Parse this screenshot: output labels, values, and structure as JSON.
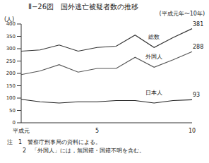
{
  "chart_data": {
    "type": "line",
    "title": "Ⅱ−26図　国外逃亡被疑者数の推移",
    "subtitle": "(平成元年〜10年)",
    "y_label": "(人)",
    "categories": [
      "平成元",
      null,
      null,
      null,
      "5",
      null,
      null,
      null,
      null,
      "10"
    ],
    "series": [
      {
        "name": "総数",
        "color": "#333333",
        "values": [
          290,
          295,
          315,
          290,
          305,
          310,
          355,
          305,
          345,
          381
        ]
      },
      {
        "name": "外国人",
        "color": "#555555",
        "values": [
          195,
          210,
          235,
          205,
          220,
          220,
          265,
          225,
          255,
          288
        ]
      },
      {
        "name": "日本人",
        "color": "#222222",
        "values": [
          95,
          85,
          80,
          85,
          85,
          90,
          90,
          80,
          90,
          93
        ]
      }
    ],
    "ylim": [
      0,
      400
    ],
    "yticks": [
      0,
      50,
      100,
      150,
      200,
      250,
      300,
      350,
      400
    ],
    "grid": false,
    "notes": [
      "注　1　警察庁刑事局の資料による。",
      "2　「外国人」には，無国籍・国籍不明を含む。"
    ]
  }
}
